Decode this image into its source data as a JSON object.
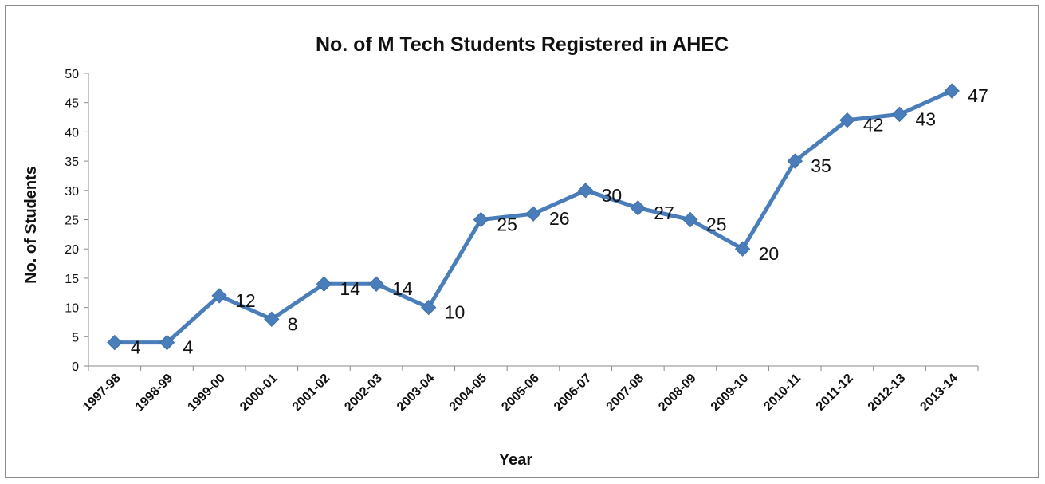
{
  "chart_data": {
    "type": "line",
    "title": "No. of M Tech Students Registered in AHEC",
    "xlabel": "Year",
    "ylabel": "No. of Students",
    "categories": [
      "1997-98",
      "1998-99",
      "1999-00",
      "2000-01",
      "2001-02",
      "2002-03",
      "2003-04",
      "2004-05",
      "2005-06",
      "2006-07",
      "2007-08",
      "2008-09",
      "2009-10",
      "2010-11",
      "2011-12",
      "2012-13",
      "2013-14"
    ],
    "series": [
      {
        "values": [
          4,
          4,
          12,
          8,
          14,
          14,
          10,
          25,
          26,
          30,
          27,
          25,
          20,
          35,
          42,
          43,
          47
        ]
      }
    ],
    "ylim": [
      0,
      50
    ],
    "yticks": [
      0,
      5,
      10,
      15,
      20,
      25,
      30,
      35,
      40,
      45,
      50
    ],
    "data_labels": [
      "4",
      "4",
      "12",
      "8",
      "14",
      "14",
      "10",
      "25",
      "26",
      "30",
      "27",
      "25",
      "20",
      "35",
      "42",
      "43",
      "47"
    ],
    "grid": false,
    "legend": "none",
    "marker": "diamond",
    "line_color": "#4a7ebb"
  }
}
